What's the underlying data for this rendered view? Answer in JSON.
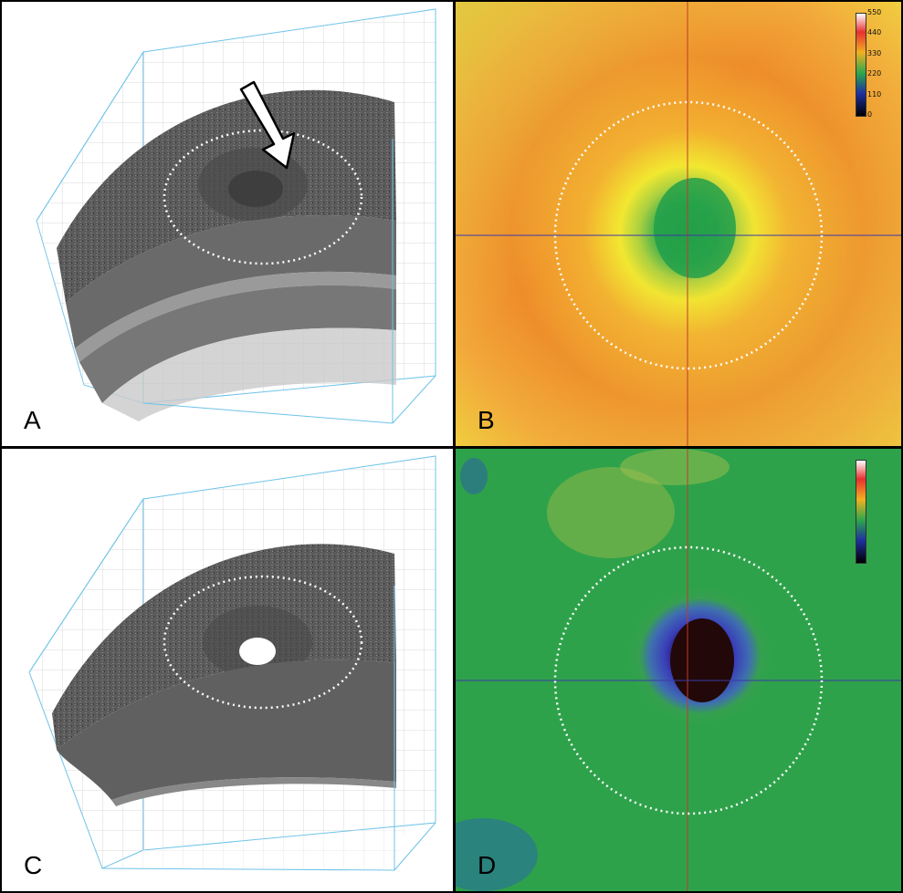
{
  "figure": {
    "panels": [
      {
        "id": "A",
        "label": "A",
        "type": "3d-oct-volume"
      },
      {
        "id": "B",
        "label": "B",
        "type": "thickness-map"
      },
      {
        "id": "C",
        "label": "C",
        "type": "3d-oct-volume"
      },
      {
        "id": "D",
        "label": "D",
        "type": "thickness-map"
      }
    ],
    "legend_b": {
      "ticks": [
        "550",
        "440",
        "330",
        "220",
        "110",
        "0"
      ]
    },
    "colors": {
      "map_b_outer": "#f0a830",
      "map_b_mid": "#f5d020",
      "map_b_center": "#2ea84a",
      "map_d_background": "#2ea24a",
      "map_d_ring": "#3b3fb0",
      "map_d_center": "#220808",
      "crosshair_vertical": "#c23a2a",
      "crosshair_horizontal": "#3a3aa8",
      "box_edge": "#6ec3e8",
      "tissue": "#5a5a5a",
      "annotation_circle": "#ffffff"
    }
  }
}
